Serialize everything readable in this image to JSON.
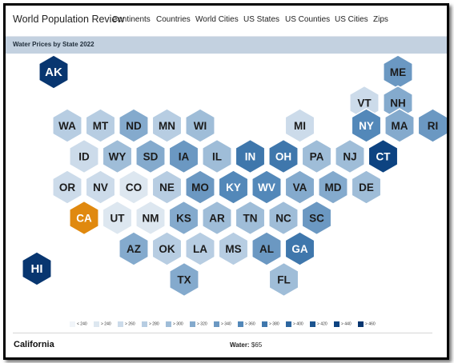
{
  "site": {
    "logo": "World Population Review",
    "nav": [
      "Continents",
      "Countries",
      "World Cities",
      "US States",
      "US Counties",
      "US Cities",
      "Zips"
    ]
  },
  "page_title": "Water Prices by State 2022",
  "colors": {
    "scale": [
      "#f1f5f9",
      "#dde7f0",
      "#ccdbea",
      "#b7cde2",
      "#9fbdd8",
      "#84aacd",
      "#6b98c2",
      "#5388b9",
      "#3f77ac",
      "#2d669f",
      "#1c548f",
      "#0d4381",
      "#083670"
    ],
    "highlight": "#e0890f"
  },
  "states": [
    {
      "abbr": "AK",
      "level": 12
    },
    {
      "abbr": "ME",
      "level": 6
    },
    {
      "abbr": "VT",
      "level": 2
    },
    {
      "abbr": "NH",
      "level": 5
    },
    {
      "abbr": "WA",
      "level": 3
    },
    {
      "abbr": "MT",
      "level": 3
    },
    {
      "abbr": "ND",
      "level": 5
    },
    {
      "abbr": "MN",
      "level": 3
    },
    {
      "abbr": "WI",
      "level": 4
    },
    {
      "abbr": "MI",
      "level": 2
    },
    {
      "abbr": "NY",
      "level": 7
    },
    {
      "abbr": "MA",
      "level": 5
    },
    {
      "abbr": "RI",
      "level": 6
    },
    {
      "abbr": "ID",
      "level": 2
    },
    {
      "abbr": "WY",
      "level": 4
    },
    {
      "abbr": "SD",
      "level": 5
    },
    {
      "abbr": "IA",
      "level": 6
    },
    {
      "abbr": "IL",
      "level": 4
    },
    {
      "abbr": "IN",
      "level": 8
    },
    {
      "abbr": "OH",
      "level": 8
    },
    {
      "abbr": "PA",
      "level": 4
    },
    {
      "abbr": "NJ",
      "level": 4
    },
    {
      "abbr": "CT",
      "level": 11
    },
    {
      "abbr": "OR",
      "level": 2
    },
    {
      "abbr": "NV",
      "level": 2
    },
    {
      "abbr": "CO",
      "level": 1
    },
    {
      "abbr": "NE",
      "level": 3
    },
    {
      "abbr": "MO",
      "level": 6
    },
    {
      "abbr": "KY",
      "level": 7
    },
    {
      "abbr": "WV",
      "level": 7
    },
    {
      "abbr": "VA",
      "level": 5
    },
    {
      "abbr": "MD",
      "level": 5
    },
    {
      "abbr": "DE",
      "level": 4
    },
    {
      "abbr": "CA",
      "level": -1
    },
    {
      "abbr": "UT",
      "level": 1
    },
    {
      "abbr": "NM",
      "level": 1
    },
    {
      "abbr": "KS",
      "level": 5
    },
    {
      "abbr": "AR",
      "level": 4
    },
    {
      "abbr": "TN",
      "level": 4
    },
    {
      "abbr": "NC",
      "level": 4
    },
    {
      "abbr": "SC",
      "level": 6
    },
    {
      "abbr": "AZ",
      "level": 5
    },
    {
      "abbr": "OK",
      "level": 3
    },
    {
      "abbr": "LA",
      "level": 3
    },
    {
      "abbr": "MS",
      "level": 3
    },
    {
      "abbr": "AL",
      "level": 6
    },
    {
      "abbr": "GA",
      "level": 8
    },
    {
      "abbr": "TX",
      "level": 5
    },
    {
      "abbr": "FL",
      "level": 4
    },
    {
      "abbr": "HI",
      "level": 12
    }
  ],
  "legend": [
    "< 240",
    "> 240",
    "> 260",
    "> 280",
    "> 300",
    "> 320",
    "> 340",
    "> 360",
    "> 380",
    "> 400",
    "> 420",
    "> 440",
    "> 460"
  ],
  "footer": {
    "state": "California",
    "water_label": "Water:",
    "water_value": "$65"
  }
}
